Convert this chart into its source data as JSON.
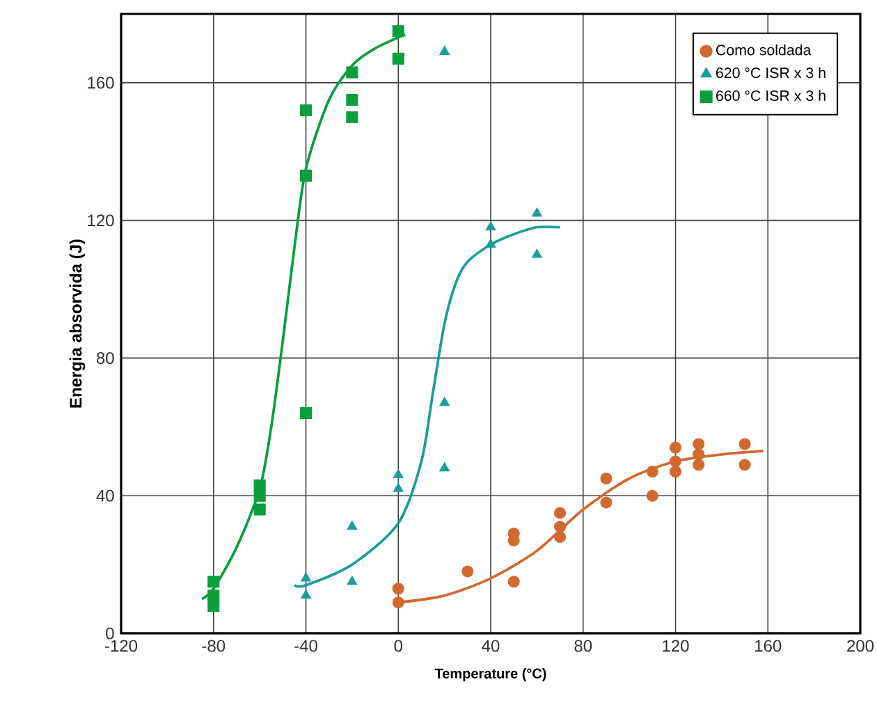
{
  "chart_data": {
    "type": "scatter",
    "xlabel": "Temperature  (°C)",
    "ylabel": "Energia absorvida (J)",
    "xlim": [
      -120,
      200
    ],
    "ylim": [
      0,
      180
    ],
    "xticks": [
      -120,
      -80,
      -40,
      0,
      40,
      80,
      120,
      160,
      200
    ],
    "yticks": [
      0,
      40,
      80,
      120,
      160
    ],
    "grid": true,
    "legend": "top right",
    "series": [
      {
        "name": "Como soldada",
        "color": "#d2692e",
        "marker": "circle",
        "x": [
          0,
          0,
          30,
          50,
          50,
          50,
          70,
          70,
          70,
          90,
          90,
          110,
          110,
          120,
          120,
          120,
          130,
          130,
          130,
          150,
          150
        ],
        "values": [
          13,
          9,
          18,
          29,
          27,
          15,
          35,
          31,
          28,
          45,
          38,
          47,
          40,
          54,
          50,
          47,
          55,
          52,
          49,
          55,
          49
        ]
      },
      {
        "name": "620 °C ISR x 3 h",
        "color": "#1a9e9a",
        "marker": "triangle",
        "x": [
          -40,
          -40,
          -20,
          -20,
          0,
          0,
          20,
          20,
          20,
          40,
          40,
          60,
          60
        ],
        "values": [
          16,
          11,
          31,
          15,
          46,
          42,
          67,
          48,
          169,
          118,
          113,
          122,
          110
        ]
      },
      {
        "name": "660 °C ISR x 3 h",
        "color": "#0a9e3c",
        "marker": "square",
        "x": [
          -80,
          -80,
          -80,
          -60,
          -60,
          -60,
          -40,
          -40,
          -40,
          -20,
          -20,
          -20,
          0,
          0
        ],
        "values": [
          15,
          8,
          11,
          43,
          40,
          36,
          152,
          133,
          64,
          163,
          155,
          150,
          175,
          167
        ]
      },
      {
        "type": "line",
        "color": "#d2692e",
        "x": [
          0,
          20,
          40,
          60,
          80,
          100,
          120,
          140,
          158
        ],
        "values": [
          9,
          11,
          16,
          24,
          36,
          45,
          50,
          52,
          53
        ]
      },
      {
        "type": "line",
        "color": "#1a9e9a",
        "x": [
          -45,
          -40,
          -20,
          0,
          10,
          15,
          20,
          25,
          30,
          40,
          50,
          60,
          70
        ],
        "values": [
          14,
          14,
          20,
          32,
          50,
          70,
          90,
          102,
          108,
          113,
          116,
          118,
          118
        ]
      },
      {
        "type": "line",
        "color": "#0a9e3c",
        "x": [
          -85,
          -80,
          -70,
          -60,
          -55,
          -50,
          -45,
          -40,
          -30,
          -20,
          -10,
          3
        ],
        "values": [
          10,
          13,
          25,
          42,
          60,
          85,
          112,
          135,
          155,
          165,
          170,
          174
        ]
      }
    ]
  }
}
